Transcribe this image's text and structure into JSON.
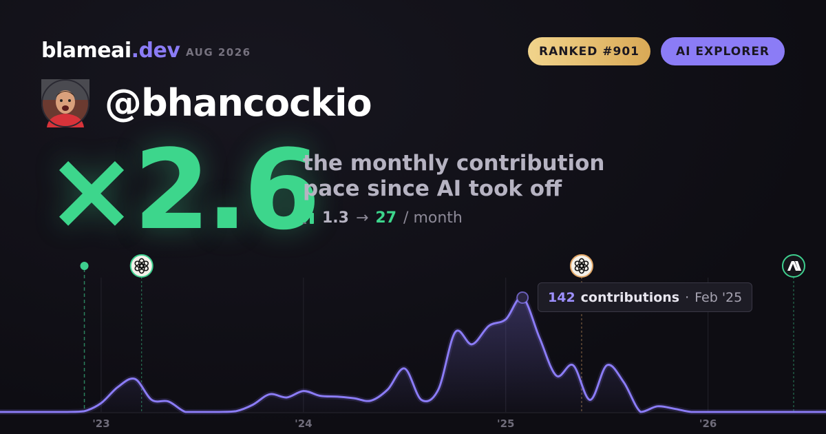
{
  "header": {
    "brand": {
      "name": "blameai",
      "tld": ".dev"
    },
    "date": "AUG 2026",
    "badges": [
      "RANKED #901",
      "AI EXPLORER"
    ]
  },
  "profile": {
    "handle": "@bhancockio"
  },
  "hero": {
    "multiplier": "×2.6",
    "caption_line1": "the monthly contribution",
    "caption_line2": "pace since AI took off",
    "before": 1.3,
    "arrow": "→",
    "after": 27,
    "unit": "/ month"
  },
  "chart_data": {
    "type": "line",
    "x": [
      2022.5,
      2022.583,
      2022.667,
      2022.75,
      2022.833,
      2022.917,
      2023,
      2023.083,
      2023.167,
      2023.25,
      2023.333,
      2023.417,
      2023.5,
      2023.583,
      2023.667,
      2023.75,
      2023.833,
      2023.917,
      2024,
      2024.083,
      2024.167,
      2024.25,
      2024.333,
      2024.417,
      2024.5,
      2024.583,
      2024.667,
      2024.75,
      2024.833,
      2024.917,
      2025,
      2025.083,
      2025.167,
      2025.25,
      2025.333,
      2025.417,
      2025.5,
      2025.583,
      2025.667,
      2025.75,
      2025.833,
      2025.917,
      2026,
      2026.083,
      2026.167,
      2026.25,
      2026.333,
      2026.417,
      2026.5,
      2026.583
    ],
    "series": [
      {
        "color": "#8b7cf6",
        "values": [
          0,
          0,
          0,
          0,
          0,
          1,
          11,
          31,
          41,
          15,
          13,
          0,
          0,
          0,
          1,
          9,
          22,
          18,
          26,
          20,
          19,
          17,
          14,
          28,
          54,
          15,
          28,
          99,
          84,
          107,
          115,
          142,
          92,
          45,
          58,
          15,
          58,
          37,
          0,
          7,
          4,
          0,
          0,
          0,
          0,
          0,
          0,
          0,
          0,
          0
        ]
      }
    ],
    "xlim": [
      2022.5,
      2026.583
    ],
    "xticks": [
      {
        "value": 2023,
        "label": "'23"
      },
      {
        "value": 2024,
        "label": "'24"
      },
      {
        "value": 2025,
        "label": "'25"
      },
      {
        "value": 2026,
        "label": "'26"
      }
    ],
    "ylim": [
      0,
      142
    ],
    "grid": true,
    "markers": {
      "x": [
        2022.917,
        2023.2,
        2025.375,
        2026.423
      ],
      "colors": [
        "#3ecf8e",
        "#3ecf8e",
        "#e3a868",
        "#3ecf8e"
      ]
    },
    "tooltip": {
      "unit": "contributions",
      "separator": "·",
      "date": "Feb '25"
    }
  }
}
